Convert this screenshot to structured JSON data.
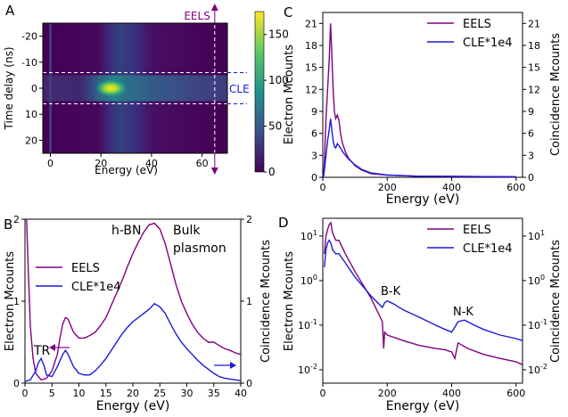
{
  "colors": {
    "eels": "#800080",
    "cle": "#1a1adc",
    "annot_eels": "#800080",
    "annot_cle": "#1a1adc",
    "dashed": "#ffffff"
  },
  "chart_data": [
    {
      "panel": "A",
      "type": "heatmap",
      "xlabel": "Energy (eV)",
      "ylabel": "Time delay (ns)",
      "xlim": [
        -3,
        70
      ],
      "ylim": [
        25,
        -25
      ],
      "xticks": [
        0,
        20,
        40,
        60
      ],
      "yticks": [
        -20,
        -10,
        0,
        10,
        20
      ],
      "colorbar": {
        "min": 0,
        "max": 175,
        "ticks": [
          0,
          50,
          100,
          150
        ],
        "colormap": "viridis"
      },
      "peak": {
        "energy": 24,
        "time": 0,
        "value": 175
      },
      "dashed_window": [
        -6,
        6
      ],
      "dashed_energy": 65,
      "annotations": [
        "EELS",
        "CLE"
      ]
    },
    {
      "panel": "B",
      "type": "line",
      "xlabel": "Energy (eV)",
      "ylabel": "Electron Mcounts",
      "y2label": "Coincidence Mcounts",
      "xlim": [
        0,
        40
      ],
      "ylim": [
        0,
        2
      ],
      "y2lim": [
        0,
        2
      ],
      "xticks": [
        0,
        5,
        10,
        15,
        20,
        25,
        30,
        35,
        40
      ],
      "yticks": [
        0,
        1,
        2
      ],
      "y2ticks": [
        0,
        1,
        2
      ],
      "legend": "center-left",
      "annotations": [
        "h-BN",
        "Bulk",
        "plasmon",
        "TR"
      ],
      "series": [
        {
          "name": "EELS",
          "x": [
            0.3,
            0.5,
            1,
            1.5,
            2,
            3,
            4,
            5,
            6,
            6.5,
            7,
            7.5,
            8,
            8.5,
            9,
            10,
            11,
            12,
            13,
            14,
            15,
            16,
            17,
            18,
            19,
            20,
            21,
            22,
            23,
            24,
            25,
            26,
            27,
            28,
            29,
            30,
            31,
            32,
            33,
            34,
            35,
            36,
            37,
            38,
            39,
            40
          ],
          "y": [
            2.0,
            1.6,
            0.7,
            0.3,
            0.12,
            0.04,
            0.06,
            0.15,
            0.35,
            0.55,
            0.72,
            0.8,
            0.78,
            0.7,
            0.62,
            0.55,
            0.55,
            0.58,
            0.62,
            0.7,
            0.8,
            0.95,
            1.1,
            1.25,
            1.42,
            1.58,
            1.72,
            1.84,
            1.93,
            1.95,
            1.88,
            1.7,
            1.45,
            1.2,
            1.0,
            0.85,
            0.72,
            0.62,
            0.55,
            0.5,
            0.5,
            0.46,
            0.42,
            0.4,
            0.37,
            0.35
          ]
        },
        {
          "name": "CLE*1e4",
          "x": [
            0,
            1,
            2,
            2.5,
            3,
            3.5,
            4,
            5,
            6,
            7,
            7.5,
            8,
            9,
            10,
            11,
            12,
            13,
            14,
            15,
            16,
            17,
            18,
            19,
            20,
            21,
            22,
            23,
            24,
            25,
            26,
            27,
            28,
            29,
            30,
            31,
            32,
            33,
            34,
            35,
            36,
            37,
            38,
            39,
            40
          ],
          "y": [
            0.02,
            0.04,
            0.15,
            0.25,
            0.3,
            0.22,
            0.1,
            0.08,
            0.2,
            0.35,
            0.4,
            0.35,
            0.2,
            0.12,
            0.1,
            0.1,
            0.15,
            0.22,
            0.3,
            0.4,
            0.5,
            0.6,
            0.68,
            0.75,
            0.8,
            0.85,
            0.9,
            0.97,
            0.93,
            0.85,
            0.72,
            0.6,
            0.5,
            0.42,
            0.35,
            0.28,
            0.22,
            0.17,
            0.12,
            0.08,
            0.06,
            0.05,
            0.04,
            0.03
          ]
        }
      ]
    },
    {
      "panel": "C",
      "type": "line",
      "xlabel": "Energy (eV)",
      "ylabel": "Electron Mcounts",
      "y2label": "Coincidence Mcounts",
      "xlim": [
        0,
        620
      ],
      "ylim": [
        0,
        22.5
      ],
      "y2lim": [
        0,
        22.5
      ],
      "xticks": [
        0,
        200,
        400,
        600
      ],
      "yticks": [
        0,
        3,
        6,
        9,
        12,
        15,
        18,
        21
      ],
      "y2ticks": [
        0,
        3,
        6,
        9,
        12,
        15,
        18,
        21
      ],
      "legend": "top-right",
      "series": [
        {
          "name": "EELS",
          "x": [
            2,
            5,
            10,
            15,
            20,
            24,
            28,
            32,
            36,
            40,
            45,
            50,
            55,
            60,
            70,
            80,
            100,
            120,
            150,
            200,
            300,
            400,
            500,
            600
          ],
          "y": [
            0,
            2,
            8,
            12,
            16,
            21,
            17,
            12,
            9,
            8,
            8.5,
            7.8,
            6,
            4.8,
            3.5,
            2.6,
            1.6,
            1.0,
            0.5,
            0.3,
            0.15,
            0.1,
            0.08,
            0.05
          ]
        },
        {
          "name": "CLE*1e4",
          "x": [
            2,
            5,
            10,
            15,
            20,
            24,
            28,
            32,
            36,
            40,
            45,
            50,
            55,
            60,
            70,
            80,
            100,
            120,
            150,
            200,
            300,
            400,
            500,
            600
          ],
          "y": [
            0,
            1,
            3,
            5,
            6.5,
            8,
            6.5,
            5,
            4.2,
            4.0,
            4.6,
            4.3,
            4.0,
            3.6,
            3.0,
            2.5,
            1.7,
            1.1,
            0.6,
            0.3,
            0.15,
            0.15,
            0.1,
            0.08
          ]
        }
      ]
    },
    {
      "panel": "D",
      "type": "line",
      "xlabel": "Energy (eV)",
      "ylabel": "Electron Mcounts",
      "y2label": "Coincidence Mcounts",
      "xlim": [
        0,
        620
      ],
      "ylim": [
        0.005,
        25
      ],
      "y2lim": [
        0.005,
        25
      ],
      "yscale": "log",
      "xticks": [
        0,
        200,
        400,
        600
      ],
      "yticks": [
        "10^-2",
        "10^-1",
        "10^0",
        "10^1"
      ],
      "legend": "top-right",
      "annotations": [
        "B-K",
        "N-K"
      ],
      "series": [
        {
          "name": "EELS",
          "x": [
            5,
            10,
            15,
            20,
            25,
            30,
            40,
            50,
            70,
            100,
            150,
            185,
            189,
            192,
            200,
            250,
            300,
            350,
            380,
            400,
            410,
            420,
            450,
            500,
            550,
            600,
            620
          ],
          "y": [
            4,
            10,
            14,
            18,
            20,
            12,
            8,
            8,
            4,
            1.6,
            0.4,
            0.12,
            0.03,
            0.07,
            0.06,
            0.045,
            0.035,
            0.03,
            0.028,
            0.025,
            0.018,
            0.04,
            0.03,
            0.022,
            0.018,
            0.015,
            0.013
          ]
        },
        {
          "name": "CLE*1e4",
          "x": [
            5,
            10,
            15,
            20,
            25,
            30,
            40,
            50,
            70,
            100,
            150,
            185,
            192,
            200,
            220,
            250,
            300,
            350,
            380,
            400,
            410,
            420,
            440,
            470,
            500,
            550,
            600,
            620
          ],
          "y": [
            2,
            5,
            7,
            8,
            7,
            5,
            4,
            4,
            2.5,
            1.2,
            0.45,
            0.25,
            0.32,
            0.35,
            0.3,
            0.22,
            0.15,
            0.1,
            0.08,
            0.07,
            0.09,
            0.12,
            0.13,
            0.1,
            0.08,
            0.06,
            0.05,
            0.045
          ]
        }
      ]
    }
  ],
  "panel_labels": {
    "a": "A",
    "b": "B",
    "c": "C",
    "d": "D"
  },
  "labels": {
    "eels": "EELS",
    "cle_short": "CLE",
    "cle": "CLE*1e4",
    "energy": "Energy (eV)",
    "time_delay": "Time delay (ns)",
    "electron": "Electron Mcounts",
    "coincidence": "Coincidence Mcounts",
    "hbn": "h-BN",
    "bulk": "Bulk",
    "plasmon": "plasmon",
    "tr": "TR",
    "bk": "B-K",
    "nk": "N-K"
  }
}
